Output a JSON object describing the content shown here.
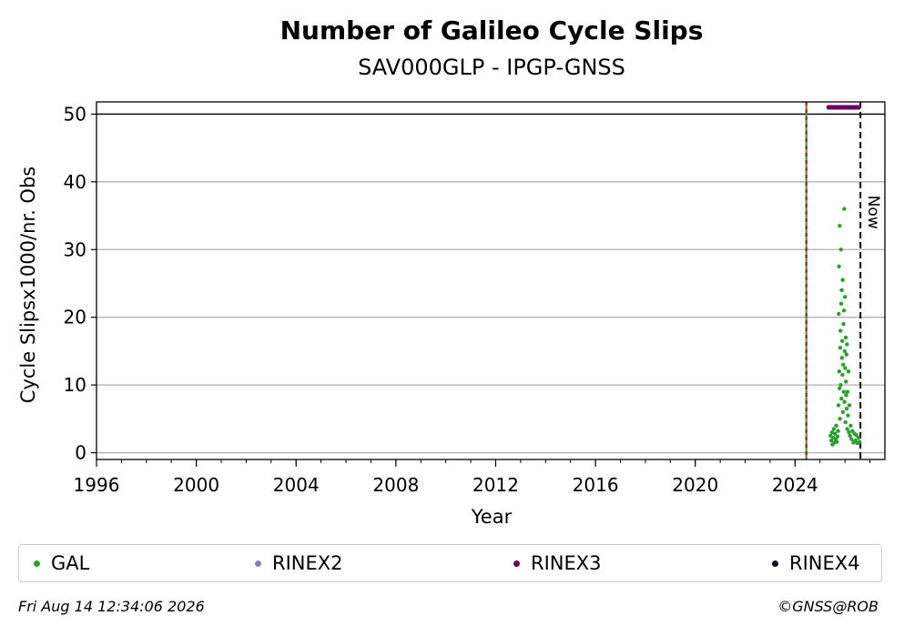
{
  "colors": {
    "gal": "#2ca02c",
    "rinex2": "#8080c0",
    "rinex3": "#6b006b",
    "rinex4": "#1a0520",
    "start_line": "#cc0000",
    "now_line": "#000000",
    "grid": "#b0b0b0"
  },
  "chart_data": {
    "type": "scatter",
    "title": "Number of Galileo Cycle Slips",
    "subtitle": "SAV000GLP - IPGP-GNSS",
    "xlabel": "Year",
    "ylabel": "Cycle Slipsx1000/nr. Obs",
    "xlim": [
      1996,
      2027.6
    ],
    "ylim": [
      -1,
      51.8
    ],
    "xticks": [
      1996,
      2000,
      2004,
      2008,
      2012,
      2016,
      2020,
      2024
    ],
    "yticks": [
      0,
      10,
      20,
      30,
      40,
      50
    ],
    "grid": "horizontal",
    "hline": 50,
    "vline_start": 2024.45,
    "vline_now": 2026.62,
    "now_label": "Now",
    "legend_position": "bottom",
    "series": [
      {
        "name": "GAL",
        "points": [
          [
            2025.42,
            2.5
          ],
          [
            2025.45,
            1.8
          ],
          [
            2025.48,
            3.0
          ],
          [
            2025.5,
            1.2
          ],
          [
            2025.53,
            2.2
          ],
          [
            2025.55,
            3.5
          ],
          [
            2025.58,
            1.5
          ],
          [
            2025.6,
            2.8
          ],
          [
            2025.63,
            2.0
          ],
          [
            2025.65,
            4.0
          ],
          [
            2025.67,
            1.6
          ],
          [
            2025.7,
            2.4
          ],
          [
            2025.72,
            3.2
          ],
          [
            2025.74,
            7.0
          ],
          [
            2025.75,
            20.5
          ],
          [
            2025.76,
            27.5
          ],
          [
            2025.77,
            12.0
          ],
          [
            2025.78,
            9.5
          ],
          [
            2025.79,
            33.5
          ],
          [
            2025.8,
            5.0
          ],
          [
            2025.81,
            15.5
          ],
          [
            2025.82,
            18.0
          ],
          [
            2025.83,
            10.0
          ],
          [
            2025.84,
            30.0
          ],
          [
            2025.85,
            22.0
          ],
          [
            2025.86,
            8.0
          ],
          [
            2025.87,
            24.0
          ],
          [
            2025.88,
            14.0
          ],
          [
            2025.89,
            16.5
          ],
          [
            2025.9,
            11.5
          ],
          [
            2025.91,
            25.5
          ],
          [
            2025.92,
            6.0
          ],
          [
            2025.93,
            13.0
          ],
          [
            2025.94,
            19.0
          ],
          [
            2025.95,
            9.0
          ],
          [
            2025.96,
            21.0
          ],
          [
            2025.97,
            36.0
          ],
          [
            2025.98,
            7.5
          ],
          [
            2025.99,
            15.0
          ],
          [
            2026.0,
            23.0
          ],
          [
            2026.01,
            12.5
          ],
          [
            2026.02,
            4.5
          ],
          [
            2026.03,
            17.0
          ],
          [
            2026.04,
            10.5
          ],
          [
            2026.05,
            8.5
          ],
          [
            2026.06,
            14.5
          ],
          [
            2026.07,
            6.5
          ],
          [
            2026.08,
            16.0
          ],
          [
            2026.09,
            3.5
          ],
          [
            2026.1,
            9.0
          ],
          [
            2026.12,
            5.5
          ],
          [
            2026.14,
            12.0
          ],
          [
            2026.16,
            3.0
          ],
          [
            2026.18,
            7.0
          ],
          [
            2026.2,
            2.5
          ],
          [
            2026.23,
            4.0
          ],
          [
            2026.26,
            2.0
          ],
          [
            2026.3,
            3.2
          ],
          [
            2026.34,
            1.5
          ],
          [
            2026.38,
            2.8
          ],
          [
            2026.42,
            1.8
          ],
          [
            2026.46,
            2.6
          ],
          [
            2026.5,
            1.4
          ],
          [
            2026.54,
            2.2
          ],
          [
            2026.58,
            1.6
          ]
        ]
      },
      {
        "name": "RINEX2",
        "points": []
      },
      {
        "name": "RINEX3",
        "points": [
          [
            2025.35,
            51.0
          ],
          [
            2025.55,
            51.0
          ],
          [
            2025.75,
            51.0
          ],
          [
            2025.95,
            51.0
          ],
          [
            2026.15,
            51.0
          ],
          [
            2026.35,
            51.0
          ],
          [
            2026.55,
            51.0
          ]
        ]
      },
      {
        "name": "RINEX4",
        "points": []
      }
    ]
  },
  "legend": {
    "gal": "GAL",
    "rinex2": "RINEX2",
    "rinex3": "RINEX3",
    "rinex4": "RINEX4"
  },
  "footer": {
    "timestamp": "Fri Aug 14 12:34:06 2026",
    "credit": "©GNSS@ROB"
  }
}
